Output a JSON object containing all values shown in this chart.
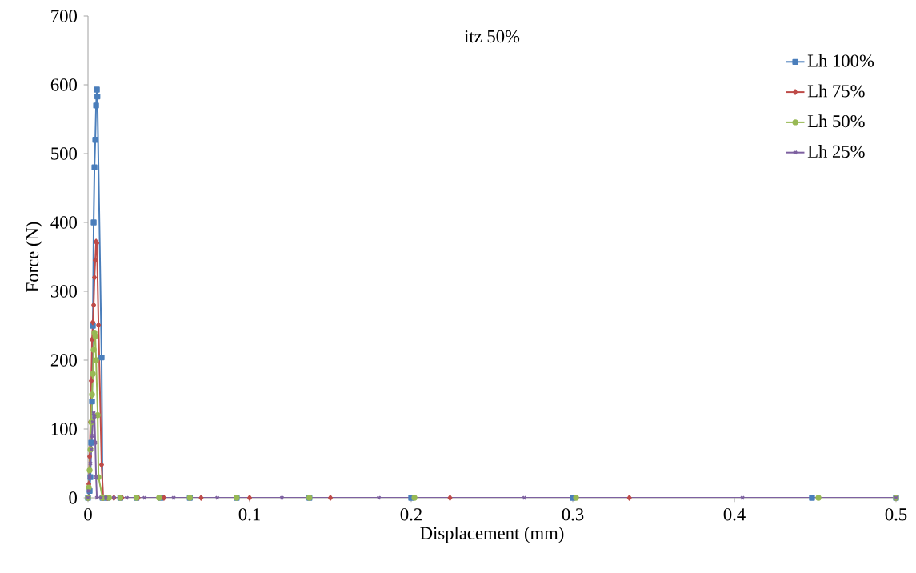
{
  "chart_data": {
    "type": "line",
    "title": "itz 50%",
    "xlabel": "Displacement (mm)",
    "ylabel": "Force (N)",
    "xlim": [
      0,
      0.5
    ],
    "ylim": [
      0,
      700
    ],
    "xticks": [
      0,
      0.1,
      0.2,
      0.3,
      0.4,
      0.5
    ],
    "yticks": [
      0,
      100,
      200,
      300,
      400,
      500,
      600,
      700
    ],
    "legend": "top right",
    "grid": false,
    "series": [
      {
        "name": "Lh 100%",
        "color": "#4a7ebb",
        "marker": "square",
        "x": [
          0,
          0.001,
          0.0015,
          0.002,
          0.0025,
          0.003,
          0.0035,
          0.004,
          0.0045,
          0.005,
          0.0055,
          0.0058,
          0.0084,
          0.009,
          0.012,
          0.02,
          0.03,
          0.045,
          0.063,
          0.092,
          0.137,
          0.2,
          0.3,
          0.448,
          0.5
        ],
        "values": [
          0,
          10,
          30,
          80,
          140,
          250,
          400,
          480,
          520,
          570,
          593,
          583,
          204,
          0,
          0,
          0,
          0,
          0,
          0,
          0,
          0,
          0,
          0,
          0,
          0
        ]
      },
      {
        "name": "Lh 75%",
        "color": "#be4b48",
        "marker": "diamond",
        "x": [
          0,
          0.0005,
          0.001,
          0.0015,
          0.002,
          0.0025,
          0.003,
          0.0035,
          0.004,
          0.0045,
          0.005,
          0.0055,
          0.0065,
          0.0084,
          0.0094,
          0.012,
          0.016,
          0.021,
          0.031,
          0.047,
          0.07,
          0.1,
          0.15,
          0.224,
          0.335,
          0.5
        ],
        "values": [
          0,
          20,
          60,
          110,
          170,
          230,
          255,
          280,
          320,
          345,
          372,
          370,
          251,
          48,
          0,
          0,
          0,
          0,
          0,
          0,
          0,
          0,
          0,
          0,
          0,
          0
        ]
      },
      {
        "name": "Lh 50%",
        "color": "#98b954",
        "marker": "circle",
        "x": [
          0,
          0.0005,
          0.001,
          0.0015,
          0.002,
          0.0025,
          0.003,
          0.0035,
          0.004,
          0.0045,
          0.005,
          0.006,
          0.0065,
          0.009,
          0.013,
          0.02,
          0.03,
          0.044,
          0.063,
          0.092,
          0.137,
          0.202,
          0.302,
          0.452,
          0.5
        ],
        "values": [
          0,
          15,
          40,
          70,
          110,
          150,
          180,
          215,
          240,
          235,
          200,
          120,
          30,
          0,
          0,
          0,
          0,
          0,
          0,
          0,
          0,
          0,
          0,
          0,
          0
        ]
      },
      {
        "name": "Lh 25%",
        "color": "#7d60a0",
        "marker": "cross",
        "x": [
          0,
          0.0005,
          0.001,
          0.0015,
          0.002,
          0.0025,
          0.003,
          0.0035,
          0.004,
          0.0045,
          0.005,
          0.0055,
          0.008,
          0.011,
          0.016,
          0.024,
          0.035,
          0.053,
          0.08,
          0.12,
          0.18,
          0.27,
          0.405,
          0.5
        ],
        "values": [
          0,
          10,
          30,
          50,
          70,
          90,
          110,
          123,
          118,
          80,
          30,
          0,
          0,
          0,
          0,
          0,
          0,
          0,
          0,
          0,
          0,
          0,
          0,
          0
        ]
      }
    ]
  }
}
